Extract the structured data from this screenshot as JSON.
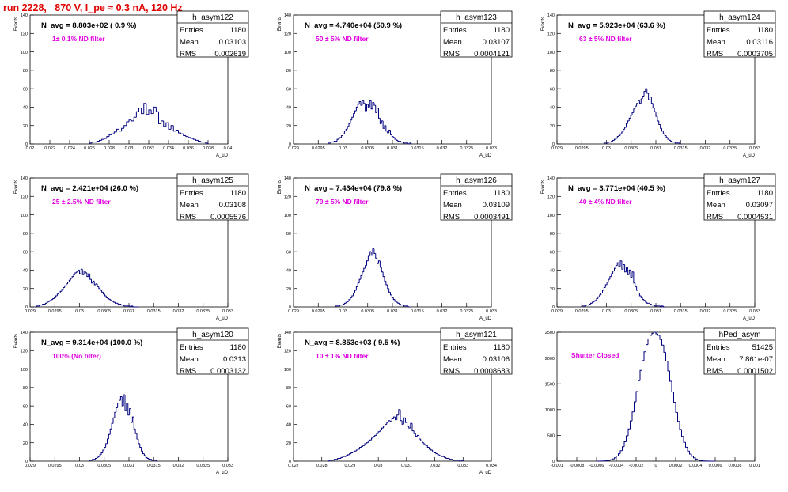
{
  "header": {
    "title": "run 2228,   870 V, I_pe ≈ 0.3 nA, 120 Hz"
  },
  "colors": {
    "hist": "#00007f",
    "title": "#e00000",
    "filter": "#e000e0"
  },
  "chart_data": [
    {
      "type": "bar",
      "name": "h_asym122",
      "stats": {
        "entries": "1180",
        "mean": "0.03103",
        "rms": "0.002619"
      },
      "navg": "N_avg = 8.803e+02 ( 0.9 %)",
      "filter": "1± 0.1% ND filter",
      "xlabel": "A_uD",
      "ylabel": "Events",
      "xlim": [
        0.02,
        0.04
      ],
      "ylim": [
        0,
        140
      ],
      "xticks": [
        "0.02",
        "0.022",
        "0.024",
        "0.026",
        "0.028",
        "0.03",
        "0.032",
        "0.034",
        "0.036",
        "0.038",
        "0.04"
      ],
      "yticks": [
        "0",
        "20",
        "40",
        "60",
        "80",
        "100",
        "120",
        "140"
      ],
      "binmin": 0.026,
      "nbins": 48,
      "values": [
        1,
        2,
        2,
        3,
        4,
        5,
        6,
        8,
        10,
        11,
        13,
        16,
        14,
        17,
        20,
        24,
        26,
        25,
        29,
        35,
        39,
        33,
        44,
        32,
        37,
        33,
        40,
        35,
        22,
        25,
        19,
        23,
        16,
        20,
        14,
        15,
        12,
        11,
        9,
        8,
        7,
        6,
        5,
        4,
        3,
        2,
        2,
        1
      ]
    },
    {
      "type": "bar",
      "name": "h_asym123",
      "stats": {
        "entries": "1180",
        "mean": "0.03107",
        "rms": "0.0004121"
      },
      "navg": "N_avg = 4.740e+04 (50.9 %)",
      "filter": "50 ± 5% ND filter",
      "xlabel": "A_uD",
      "ylabel": "Events",
      "xlim": [
        0.029,
        0.033
      ],
      "ylim": [
        0,
        140
      ],
      "xticks": [
        "0.029",
        "0.0295",
        "0.03",
        "0.0305",
        "0.031",
        "0.0315",
        "0.032",
        "0.0325",
        "0.033"
      ],
      "yticks": [
        "0",
        "20",
        "40",
        "60",
        "80",
        "100",
        "120",
        "140"
      ],
      "binmin": 0.0297,
      "nbins": 56,
      "values": [
        1,
        1,
        2,
        2,
        3,
        3,
        5,
        6,
        7,
        9,
        11,
        14,
        16,
        19,
        22,
        26,
        29,
        33,
        36,
        40,
        43,
        46,
        42,
        47,
        44,
        36,
        43,
        40,
        47,
        38,
        45,
        42,
        34,
        39,
        28,
        22,
        25,
        17,
        20,
        14,
        12,
        15,
        10,
        8,
        7,
        5,
        4,
        3,
        3,
        2,
        2,
        1,
        1,
        1,
        0,
        1
      ]
    },
    {
      "type": "bar",
      "name": "h_asym124",
      "stats": {
        "entries": "1180",
        "mean": "0.03116",
        "rms": "0.0003705"
      },
      "navg": "N_avg = 5.923e+04 (63.6 %)",
      "filter": "63 ± 5% ND filter",
      "xlabel": "A_uD",
      "ylabel": "Events",
      "xlim": [
        0.029,
        0.033
      ],
      "ylim": [
        0,
        140
      ],
      "xticks": [
        "0.029",
        "0.0295",
        "0.03",
        "0.0305",
        "0.031",
        "0.0315",
        "0.032",
        "0.0325",
        "0.033"
      ],
      "yticks": [
        "0",
        "20",
        "40",
        "60",
        "80",
        "100",
        "120",
        "140"
      ],
      "binmin": 0.02995,
      "nbins": 52,
      "values": [
        1,
        1,
        1,
        2,
        2,
        3,
        4,
        5,
        6,
        8,
        9,
        11,
        13,
        16,
        18,
        22,
        25,
        28,
        31,
        34,
        38,
        41,
        44,
        47,
        44,
        49,
        52,
        57,
        60,
        55,
        48,
        51,
        44,
        39,
        35,
        30,
        25,
        21,
        17,
        14,
        11,
        9,
        7,
        5,
        4,
        3,
        2,
        2,
        1,
        1,
        1,
        0
      ]
    },
    {
      "type": "bar",
      "name": "h_asym125",
      "stats": {
        "entries": "1180",
        "mean": "0.03108",
        "rms": "0.0005576"
      },
      "navg": "N_avg = 2.421e+04 (26.0 %)",
      "filter": "25 ± 2.5% ND filter",
      "xlabel": "A_uD",
      "ylabel": "Events",
      "xlim": [
        0.029,
        0.033
      ],
      "ylim": [
        0,
        140
      ],
      "xticks": [
        "0.029",
        "0.0295",
        "0.03",
        "0.0305",
        "0.031",
        "0.0315",
        "0.032",
        "0.0325",
        "0.033"
      ],
      "yticks": [
        "0",
        "20",
        "40",
        "60",
        "80",
        "100",
        "120",
        "140"
      ],
      "binmin": 0.0291,
      "nbins": 70,
      "values": [
        0,
        1,
        1,
        2,
        2,
        3,
        3,
        4,
        5,
        6,
        7,
        8,
        9,
        10,
        12,
        14,
        15,
        17,
        19,
        21,
        23,
        25,
        27,
        29,
        31,
        33,
        35,
        37,
        38,
        40,
        36,
        41,
        35,
        39,
        37,
        33,
        36,
        30,
        26,
        28,
        24,
        25,
        22,
        20,
        18,
        16,
        14,
        12,
        10,
        9,
        8,
        7,
        6,
        5,
        4,
        4,
        3,
        3,
        2,
        2,
        1,
        1,
        1,
        1,
        0,
        1,
        0,
        0,
        0,
        0
      ]
    },
    {
      "type": "bar",
      "name": "h_asym126",
      "stats": {
        "entries": "1180",
        "mean": "0.03109",
        "rms": "0.0003491"
      },
      "navg": "N_avg = 7.434e+04 (79.8 %)",
      "filter": "79 ± 5% ND filter",
      "xlabel": "A_uD",
      "ylabel": "Events",
      "xlim": [
        0.029,
        0.033
      ],
      "ylim": [
        0,
        140
      ],
      "xticks": [
        "0.029",
        "0.0295",
        "0.03",
        "0.0305",
        "0.031",
        "0.0315",
        "0.032",
        "0.0325",
        "0.033"
      ],
      "yticks": [
        "0",
        "20",
        "40",
        "60",
        "80",
        "100",
        "120",
        "140"
      ],
      "binmin": 0.02985,
      "nbins": 50,
      "values": [
        1,
        1,
        1,
        2,
        2,
        3,
        4,
        5,
        6,
        8,
        10,
        12,
        15,
        18,
        22,
        26,
        30,
        34,
        38,
        42,
        45,
        50,
        55,
        60,
        56,
        63,
        58,
        53,
        47,
        50,
        43,
        38,
        33,
        28,
        24,
        20,
        16,
        13,
        10,
        8,
        6,
        5,
        4,
        3,
        2,
        2,
        1,
        1,
        1,
        0
      ]
    },
    {
      "type": "bar",
      "name": "h_asym127",
      "stats": {
        "entries": "1180",
        "mean": "0.03097",
        "rms": "0.0004531"
      },
      "navg": "N_avg = 3.771e+04 (40.5 %)",
      "filter": "40 ± 4% ND filter",
      "xlabel": "A_uD",
      "ylabel": "Events",
      "xlim": [
        0.029,
        0.033
      ],
      "ylim": [
        0,
        140
      ],
      "xticks": [
        "0.029",
        "0.0295",
        "0.03",
        "0.0305",
        "0.031",
        "0.0315",
        "0.032",
        "0.0325",
        "0.033"
      ],
      "yticks": [
        "0",
        "20",
        "40",
        "60",
        "80",
        "100",
        "120",
        "140"
      ],
      "binmin": 0.0295,
      "nbins": 56,
      "values": [
        1,
        1,
        1,
        2,
        2,
        3,
        4,
        5,
        6,
        7,
        9,
        11,
        13,
        15,
        18,
        21,
        24,
        27,
        30,
        33,
        36,
        39,
        42,
        45,
        48,
        44,
        50,
        41,
        46,
        38,
        43,
        35,
        40,
        32,
        38,
        26,
        22,
        18,
        15,
        12,
        10,
        8,
        7,
        5,
        4,
        4,
        3,
        2,
        2,
        1,
        1,
        1,
        1,
        0,
        1,
        0
      ]
    },
    {
      "type": "bar",
      "name": "h_asym120",
      "stats": {
        "entries": "1180",
        "mean": "0.0313",
        "rms": "0.0003132"
      },
      "navg": "N_avg = 9.314e+04 (100.0 %)",
      "filter": "100% (No filter)",
      "xlabel": "A_uD",
      "ylabel": "Events",
      "xlim": [
        0.029,
        0.033
      ],
      "ylim": [
        0,
        140
      ],
      "xticks": [
        "0.029",
        "0.0295",
        "0.03",
        "0.0305",
        "0.031",
        "0.0315",
        "0.032",
        "0.0325",
        "0.033"
      ],
      "yticks": [
        "0",
        "20",
        "40",
        "60",
        "80",
        "100",
        "120",
        "140"
      ],
      "binmin": 0.0302,
      "nbins": 46,
      "values": [
        1,
        1,
        2,
        2,
        3,
        4,
        5,
        7,
        9,
        12,
        15,
        19,
        24,
        29,
        35,
        41,
        47,
        53,
        58,
        63,
        66,
        70,
        60,
        72,
        55,
        63,
        50,
        57,
        42,
        48,
        35,
        30,
        24,
        19,
        15,
        11,
        8,
        6,
        4,
        3,
        2,
        2,
        1,
        1,
        1,
        0
      ]
    },
    {
      "type": "bar",
      "name": "h_asym121",
      "stats": {
        "entries": "1180",
        "mean": "0.03106",
        "rms": "0.0008683"
      },
      "navg": "N_avg = 8.853e+03 ( 9.5 %)",
      "filter": "10 ± 1% ND filter",
      "xlabel": "A_uD",
      "ylabel": "Events",
      "xlim": [
        0.027,
        0.034
      ],
      "ylim": [
        0,
        140
      ],
      "xticks": [
        "0.027",
        "0.028",
        "0.029",
        "0.03",
        "0.031",
        "0.032",
        "0.033",
        "0.034"
      ],
      "yticks": [
        "0",
        "20",
        "40",
        "60",
        "80",
        "100",
        "120",
        "140"
      ],
      "binmin": 0.0282,
      "nbins": 80,
      "values": [
        0,
        1,
        1,
        1,
        2,
        2,
        3,
        3,
        4,
        5,
        5,
        6,
        7,
        8,
        9,
        10,
        11,
        12,
        13,
        15,
        16,
        17,
        19,
        20,
        22,
        23,
        25,
        27,
        28,
        30,
        32,
        34,
        36,
        38,
        40,
        42,
        44,
        43,
        46,
        48,
        45,
        50,
        56,
        44,
        40,
        47,
        42,
        38,
        36,
        41,
        33,
        30,
        27,
        28,
        24,
        22,
        20,
        18,
        17,
        15,
        13,
        12,
        10,
        9,
        8,
        7,
        6,
        5,
        5,
        4,
        3,
        3,
        2,
        2,
        1,
        1,
        1,
        1,
        0,
        1
      ]
    },
    {
      "type": "bar",
      "name": "hPed_asym",
      "stats": {
        "entries": "51425",
        "mean": "7.861e-07",
        "rms": "0.0001502"
      },
      "navg": "",
      "filter": "Shutter Closed",
      "xlabel": "",
      "ylabel": "",
      "xlim": [
        -0.001,
        0.001
      ],
      "ylim": [
        0,
        2500
      ],
      "xticks": [
        "-0.001",
        "-0.0008",
        "-0.0006",
        "-0.0004",
        "-0.0002",
        "0",
        "0.0002",
        "0.0004",
        "0.0006",
        "0.0008",
        "0.001"
      ],
      "yticks": [
        "0",
        "500",
        "1000",
        "1500",
        "2000",
        "2500"
      ],
      "binmin": -0.0006,
      "nbins": 60,
      "values": [
        0,
        0,
        1,
        2,
        5,
        9,
        15,
        26,
        42,
        66,
        99,
        144,
        203,
        280,
        375,
        490,
        625,
        780,
        955,
        1150,
        1350,
        1560,
        1760,
        1950,
        2120,
        2260,
        2370,
        2440,
        2480,
        2500,
        2470,
        2440,
        2360,
        2250,
        2110,
        1940,
        1750,
        1550,
        1340,
        1140,
        945,
        770,
        615,
        480,
        365,
        270,
        195,
        138,
        95,
        63,
        40,
        25,
        14,
        8,
        4,
        2,
        1,
        0,
        0,
        0
      ]
    }
  ]
}
